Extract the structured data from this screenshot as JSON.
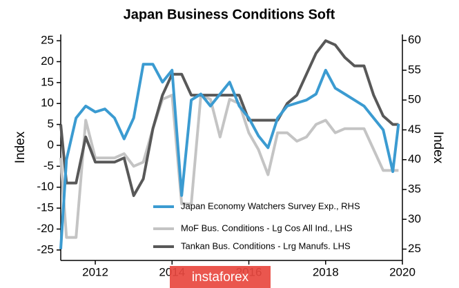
{
  "chart_data": {
    "type": "line",
    "title": "Japan Business Conditions Soft",
    "ylabel": "Index",
    "y2label": "Index",
    "x": [
      2011.1,
      2011.25,
      2011.5,
      2011.75,
      2012,
      2012.25,
      2012.5,
      2012.75,
      2013,
      2013.25,
      2013.5,
      2013.75,
      2014,
      2014.25,
      2014.5,
      2014.75,
      2015,
      2015.25,
      2015.5,
      2015.75,
      2016,
      2016.25,
      2016.5,
      2016.75,
      2017,
      2017.25,
      2017.5,
      2017.75,
      2018,
      2018.25,
      2018.5,
      2018.75,
      2019,
      2019.25,
      2019.5,
      2019.75,
      2019.9
    ],
    "series": [
      {
        "name": "Japan Economy Watchers Survey Exp., RHS",
        "color": "#3b9bd1",
        "axis": "y2",
        "values": [
          25,
          40,
          47,
          49,
          48,
          48.5,
          47,
          43.5,
          47,
          56,
          56,
          53,
          55,
          34,
          50,
          51,
          49,
          51,
          53,
          49,
          47,
          44,
          42,
          47,
          49,
          49.5,
          50,
          51,
          55,
          52,
          51,
          50,
          49,
          47,
          45,
          38,
          46
        ]
      },
      {
        "name": "MoF Bus. Conditions - Lg Cos All Ind., LHS",
        "color": "#c4c4c4",
        "values": [
          -3,
          -22,
          -22,
          6,
          -3,
          -3,
          -3,
          -2,
          -5,
          -4,
          4,
          11,
          12,
          -14,
          -14,
          12,
          11,
          2,
          11,
          10,
          3,
          -1,
          -7,
          3,
          3,
          1,
          2,
          5,
          6,
          3,
          4,
          4,
          4,
          -1,
          -6,
          -6,
          -6
        ]
      },
      {
        "name": "Tankan Bus. Conditions - Lrg Manufs. LHS",
        "color": "#585858",
        "values": [
          5,
          -9,
          -9,
          2,
          -4,
          -4,
          -4,
          -3,
          -12,
          -8,
          4,
          12,
          17,
          17,
          12,
          12,
          12,
          12,
          12,
          12,
          6,
          6,
          6,
          6,
          10,
          12,
          17,
          22,
          25,
          24,
          21,
          19,
          19,
          12,
          7,
          5,
          5
        ]
      }
    ],
    "xlim": [
      2011.1,
      2020
    ],
    "xticks": [
      2012,
      2014,
      2016,
      2018,
      2020
    ],
    "ylim": [
      -27.5,
      26.5
    ],
    "yticks": [
      -25,
      -20,
      -15,
      -10,
      -5,
      0,
      5,
      10,
      15,
      20,
      25
    ],
    "y2lim": [
      23.1,
      61.0
    ],
    "y2ticks": [
      25,
      30,
      35,
      40,
      45,
      50,
      55,
      60
    ],
    "legend": "lower right",
    "watermark": "instaforex"
  }
}
